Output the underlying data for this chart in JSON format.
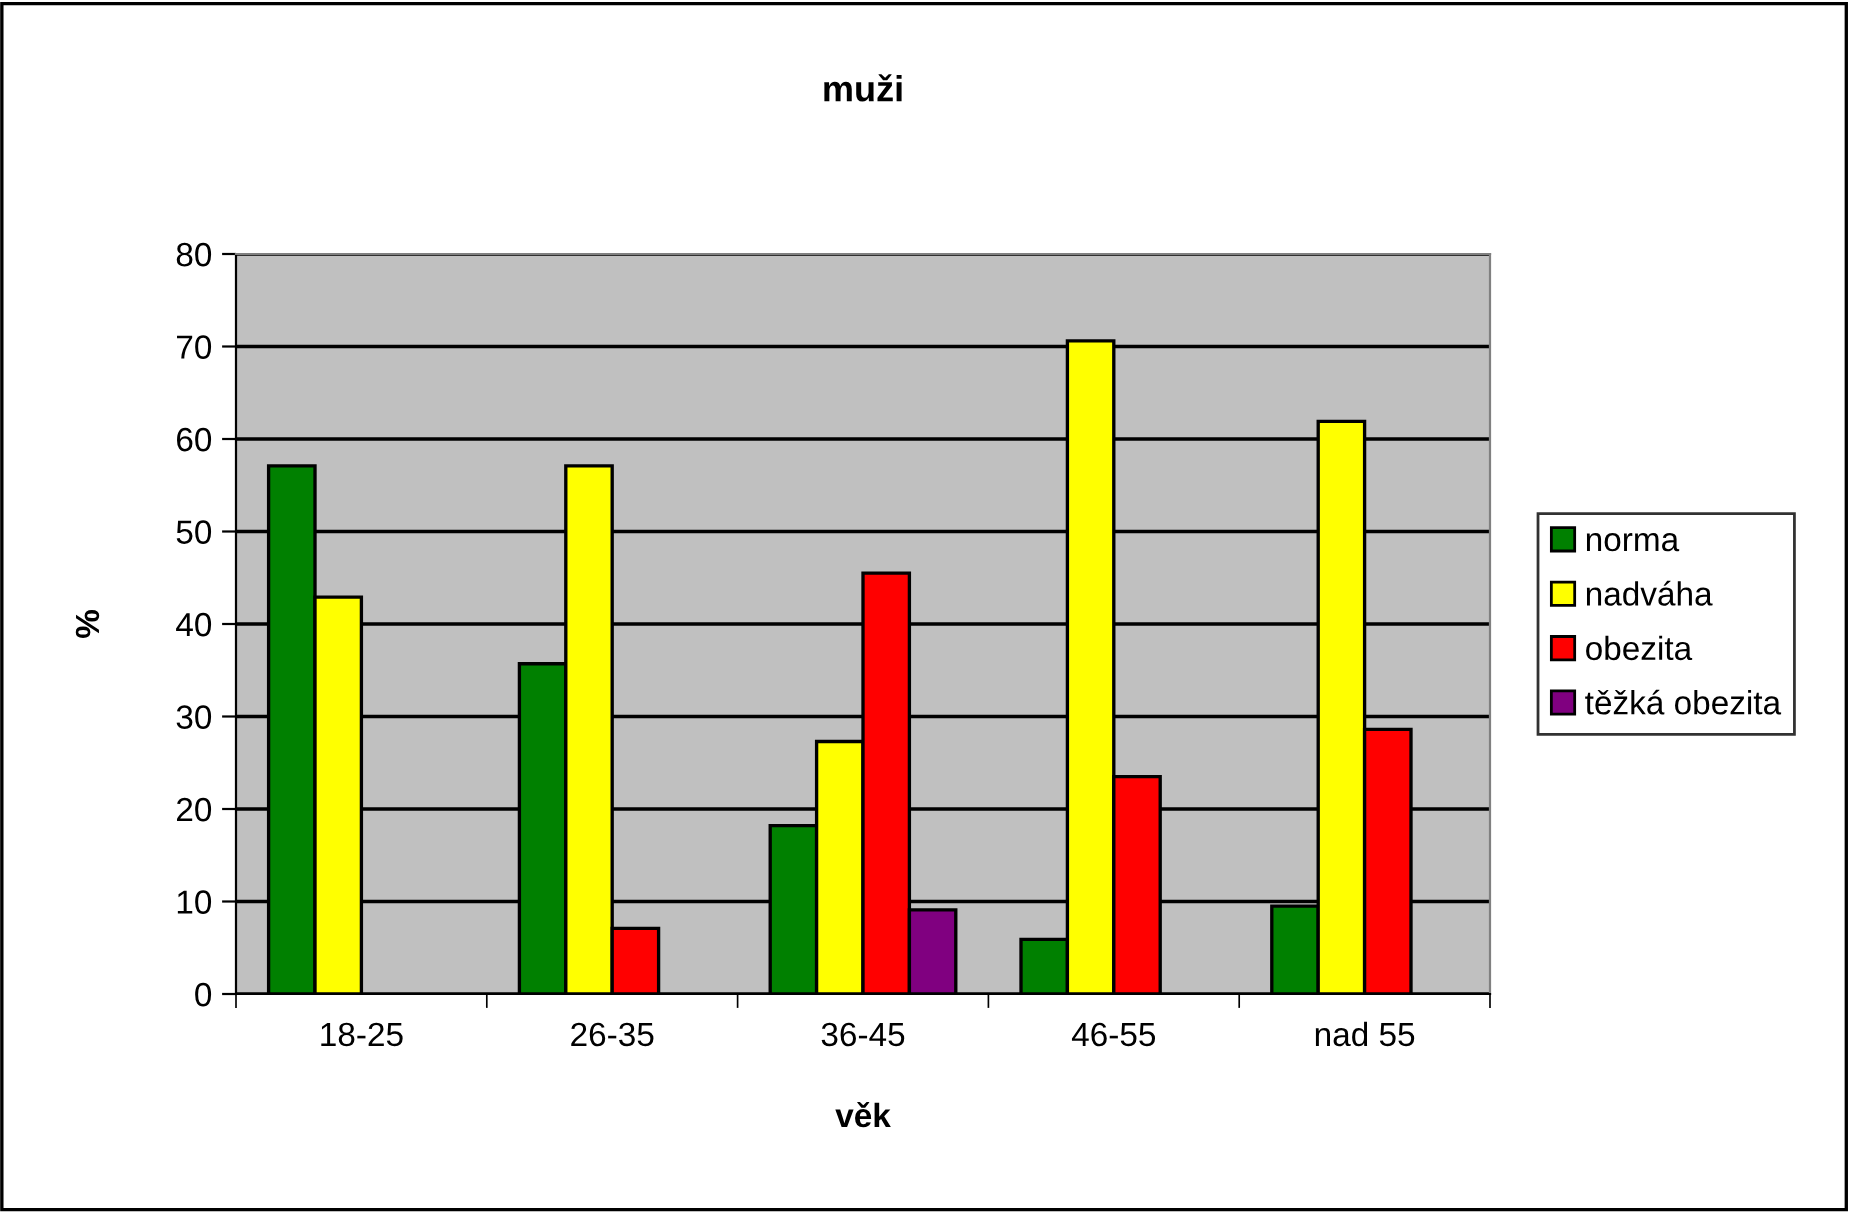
{
  "chart_data": {
    "type": "bar",
    "title": "muži",
    "xlabel": "věk",
    "ylabel": "%",
    "categories": [
      "18-25",
      "26-35",
      "36-45",
      "46-55",
      "nad 55"
    ],
    "series": [
      {
        "name": "norma",
        "color": "#008000",
        "values": [
          57.1,
          35.7,
          18.2,
          5.9,
          9.5
        ]
      },
      {
        "name": "nadváha",
        "color": "#ffff00",
        "values": [
          42.9,
          57.1,
          27.3,
          70.6,
          61.9
        ]
      },
      {
        "name": "obezita",
        "color": "#ff0000",
        "values": [
          null,
          7.1,
          45.5,
          23.5,
          28.6
        ]
      },
      {
        "name": "těžká obezita",
        "color": "#800080",
        "values": [
          null,
          null,
          9.1,
          null,
          null
        ]
      }
    ],
    "ylim": [
      0,
      80
    ],
    "yticks": [
      0,
      10,
      20,
      30,
      40,
      50,
      60,
      70,
      80
    ],
    "grid": "y",
    "legend": "right"
  }
}
